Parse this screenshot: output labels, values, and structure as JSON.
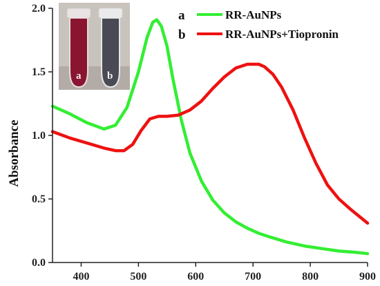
{
  "chart_data": {
    "type": "line",
    "ylabel": "Absorbance",
    "xlabel": "",
    "xlim": [
      350,
      900
    ],
    "ylim": [
      0.0,
      2.0
    ],
    "x_ticks": [
      "400",
      "500",
      "600",
      "700",
      "800",
      "900"
    ],
    "y_ticks": [
      "0.0",
      "0.5",
      "1.0",
      "1.5",
      "2.0"
    ],
    "grid": false,
    "legend_position": "top-right",
    "series": [
      {
        "key": "a",
        "name": "RR-AuNPs",
        "color": "#33ee33",
        "x": [
          350,
          380,
          410,
          440,
          460,
          480,
          500,
          515,
          525,
          532,
          540,
          550,
          560,
          575,
          590,
          610,
          630,
          650,
          670,
          690,
          710,
          730,
          760,
          790,
          820,
          850,
          880,
          900
        ],
        "y": [
          1.23,
          1.17,
          1.1,
          1.05,
          1.08,
          1.22,
          1.5,
          1.77,
          1.89,
          1.91,
          1.86,
          1.7,
          1.45,
          1.12,
          0.86,
          0.64,
          0.49,
          0.39,
          0.32,
          0.27,
          0.23,
          0.2,
          0.16,
          0.13,
          0.11,
          0.09,
          0.08,
          0.07
        ]
      },
      {
        "key": "b",
        "name": "RR-AuNPs+Tiopronin",
        "color": "#ee1111",
        "x": [
          350,
          380,
          410,
          440,
          460,
          475,
          490,
          505,
          520,
          535,
          550,
          570,
          590,
          610,
          630,
          650,
          670,
          690,
          700,
          710,
          720,
          735,
          750,
          770,
          790,
          810,
          830,
          850,
          870,
          900
        ],
        "y": [
          1.03,
          0.98,
          0.94,
          0.9,
          0.88,
          0.88,
          0.93,
          1.04,
          1.13,
          1.15,
          1.15,
          1.16,
          1.2,
          1.27,
          1.37,
          1.46,
          1.53,
          1.56,
          1.56,
          1.56,
          1.54,
          1.48,
          1.38,
          1.2,
          0.98,
          0.78,
          0.61,
          0.5,
          0.42,
          0.31
        ]
      }
    ],
    "inset_photo": {
      "vials": [
        {
          "label": "a",
          "liquid_color": "#8a1530"
        },
        {
          "label": "b",
          "liquid_color": "#4a4a55"
        }
      ]
    }
  }
}
